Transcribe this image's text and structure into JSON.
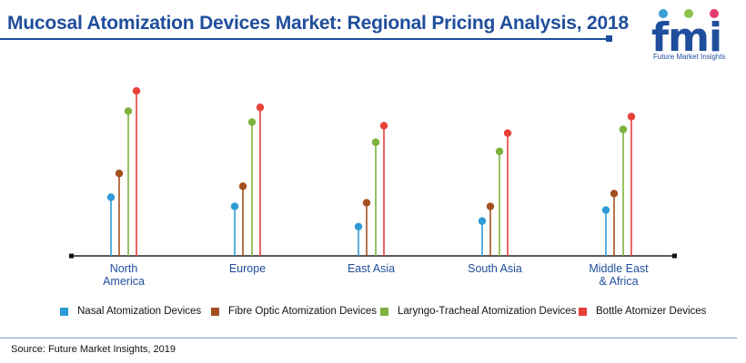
{
  "header": {
    "title": "Mucosal Atomization Devices Market: Regional Pricing Analysis, 2018"
  },
  "logo": {
    "mark": "fmi",
    "text": "Future Market Insights",
    "dot_colors": [
      "#3aa0d8",
      "#8bc34a",
      "#e63b6a"
    ]
  },
  "chart_data": {
    "type": "lollipop",
    "categories": [
      "North\nAmerica",
      "Europe",
      "East Asia",
      "South Asia",
      "Middle East\n& Africa"
    ],
    "ylim": [
      0,
      100
    ],
    "grid": false,
    "legend_position": "bottom",
    "series": [
      {
        "name": "Nasal Atomization Devices",
        "color": "#2e9bd6",
        "values": [
          32,
          27,
          16,
          19,
          25
        ]
      },
      {
        "name": "Fibre Optic Atomization Devices",
        "color": "#a3501f",
        "values": [
          45,
          38,
          29,
          27,
          34
        ]
      },
      {
        "name": "Laryngo-Tracheal Atomization Devices",
        "color": "#7db23e",
        "values": [
          79,
          73,
          62,
          57,
          69
        ]
      },
      {
        "name": "Bottle Atomizer Devices",
        "color": "#e8413a",
        "values": [
          90,
          81,
          71,
          67,
          76
        ]
      }
    ]
  },
  "footer": {
    "source": "Source: Future Market Insights, 2019"
  }
}
